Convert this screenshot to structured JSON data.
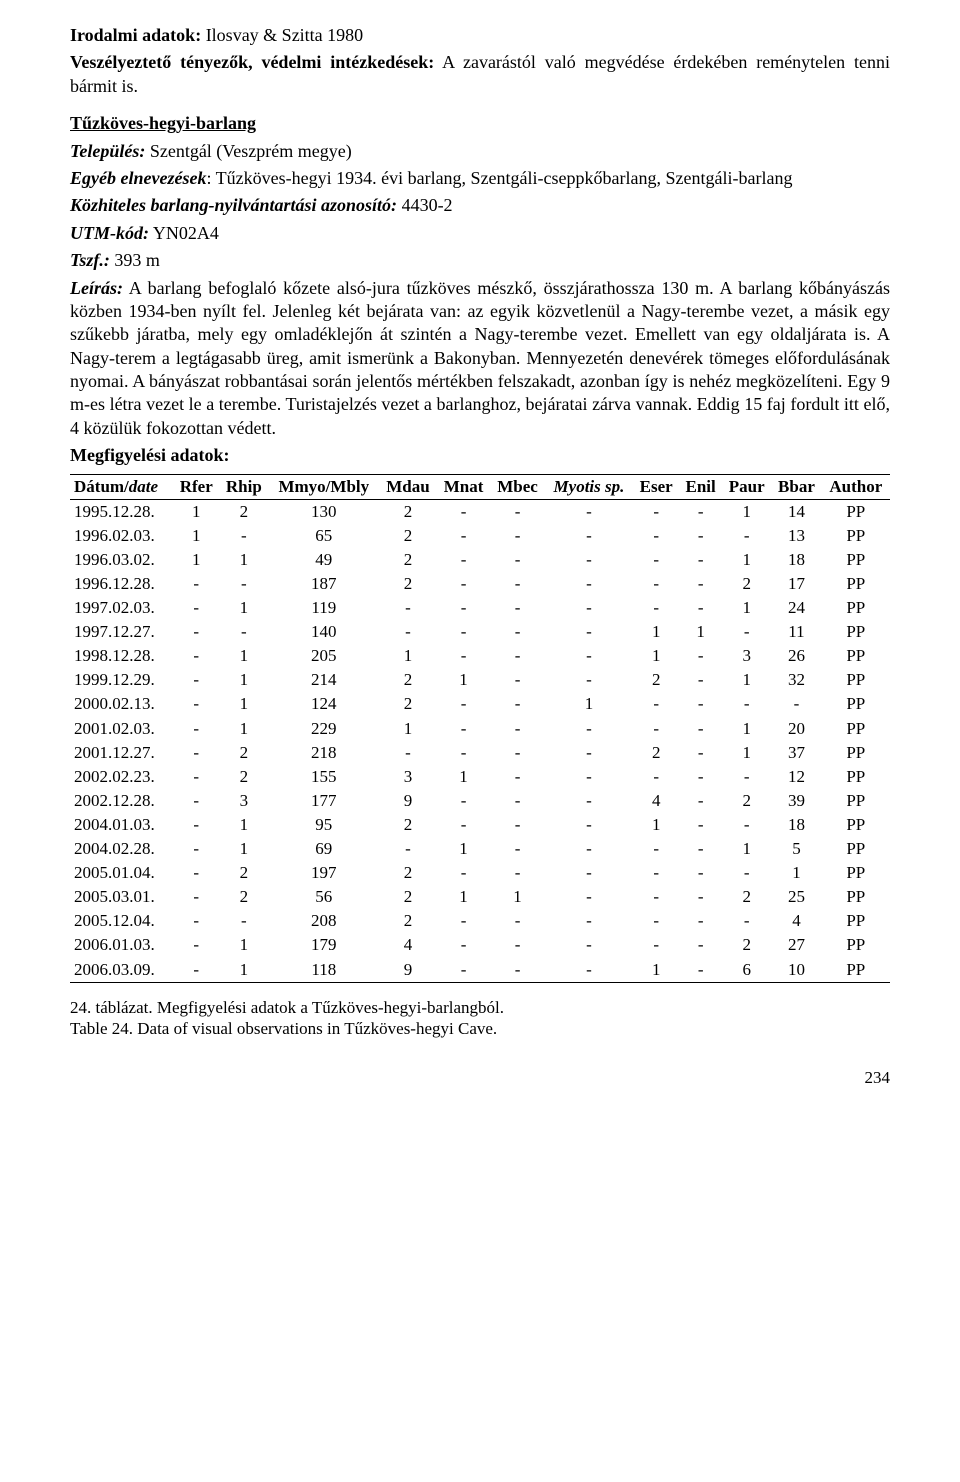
{
  "para1": {
    "label": "Irodalmi adatok:",
    "text": " Ilosvay & Szitta 1980"
  },
  "para2": {
    "label": "Veszélyeztető tényezők, védelmi intézkedések:",
    "text": " A zavarástól való megvédése érdekében reménytelen tenni bármit is."
  },
  "title": "Tűzköves-hegyi-barlang",
  "loc": {
    "label": "Település:",
    "text": " Szentgál (Veszprém megye)"
  },
  "alt": {
    "label": "Egyéb elnevezések",
    "text": ": Tűzköves-hegyi 1934. évi barlang, Szentgáli-cseppkőbarlang, Szentgáli-barlang"
  },
  "id": {
    "label": "Közhiteles barlang-nyilvántartási azonosító:",
    "text": " 4430-2"
  },
  "utm": {
    "label": "UTM-kód:",
    "text": " YN02A4"
  },
  "tszf": {
    "label": "Tszf.:",
    "text": " 393 m"
  },
  "desc_label": "Leírás:",
  "desc_text": " A barlang befoglaló kőzete alsó-jura tűzköves mészkő, összjárathossza 130 m. A barlang kőbányászás közben 1934-ben nyílt fel. Jelenleg két bejárata van: az egyik közvetlenül a Nagy-terembe vezet, a másik egy szűkebb járatba, mely egy omladéklejőn át szintén a Nagy-terembe vezet. Emellett van egy oldaljárata is. A Nagy-terem a legtágasabb üreg, amit ismerünk a Bakonyban. Mennyezetén denevérek tömeges előfordulásának nyomai. A bányászat robbantásai során jelentős mértékben felszakadt, azonban így is nehéz megközelíteni. Egy 9 m-es létra vezet le a terembe. Turistajelzés vezet a barlanghoz, bejáratai zárva vannak. Eddig 15 faj fordult itt elő, 4 közülük fokozottan védett.",
  "obs_label": "Megfigyelési adatok:",
  "headers": [
    "Dátum/",
    "date",
    "Rfer",
    "Rhip",
    "Mmyo/Mbly",
    "Mdau",
    "Mnat",
    "Mbec",
    "Myotis sp.",
    "Eser",
    "Enil",
    "Paur",
    "Bbar",
    "Author"
  ],
  "rows": [
    [
      "1995.12.28.",
      "1",
      "2",
      "130",
      "2",
      "-",
      "-",
      "-",
      "-",
      "-",
      "1",
      "14",
      "PP"
    ],
    [
      "1996.02.03.",
      "1",
      "-",
      "65",
      "2",
      "-",
      "-",
      "-",
      "-",
      "-",
      "-",
      "13",
      "PP"
    ],
    [
      "1996.03.02.",
      "1",
      "1",
      "49",
      "2",
      "-",
      "-",
      "-",
      "-",
      "-",
      "1",
      "18",
      "PP"
    ],
    [
      "1996.12.28.",
      "-",
      "-",
      "187",
      "2",
      "-",
      "-",
      "-",
      "-",
      "-",
      "2",
      "17",
      "PP"
    ],
    [
      "1997.02.03.",
      "-",
      "1",
      "119",
      "-",
      "-",
      "-",
      "-",
      "-",
      "-",
      "1",
      "24",
      "PP"
    ],
    [
      "1997.12.27.",
      "-",
      "-",
      "140",
      "-",
      "-",
      "-",
      "-",
      "1",
      "1",
      "-",
      "11",
      "PP"
    ],
    [
      "1998.12.28.",
      "-",
      "1",
      "205",
      "1",
      "-",
      "-",
      "-",
      "1",
      "-",
      "3",
      "26",
      "PP"
    ],
    [
      "1999.12.29.",
      "-",
      "1",
      "214",
      "2",
      "1",
      "-",
      "-",
      "2",
      "-",
      "1",
      "32",
      "PP"
    ],
    [
      "2000.02.13.",
      "-",
      "1",
      "124",
      "2",
      "-",
      "-",
      "1",
      "-",
      "-",
      "-",
      "-",
      "PP"
    ],
    [
      "2001.02.03.",
      "-",
      "1",
      "229",
      "1",
      "-",
      "-",
      "-",
      "-",
      "-",
      "1",
      "20",
      "PP"
    ],
    [
      "2001.12.27.",
      "-",
      "2",
      "218",
      "-",
      "-",
      "-",
      "-",
      "2",
      "-",
      "1",
      "37",
      "PP"
    ],
    [
      "2002.02.23.",
      "-",
      "2",
      "155",
      "3",
      "1",
      "-",
      "-",
      "-",
      "-",
      "-",
      "12",
      "PP"
    ],
    [
      "2002.12.28.",
      "-",
      "3",
      "177",
      "9",
      "-",
      "-",
      "-",
      "4",
      "-",
      "2",
      "39",
      "PP"
    ],
    [
      "2004.01.03.",
      "-",
      "1",
      "95",
      "2",
      "-",
      "-",
      "-",
      "1",
      "-",
      "-",
      "18",
      "PP"
    ],
    [
      "2004.02.28.",
      "-",
      "1",
      "69",
      "-",
      "1",
      "-",
      "-",
      "-",
      "-",
      "1",
      "5",
      "PP"
    ],
    [
      "2005.01.04.",
      "-",
      "2",
      "197",
      "2",
      "-",
      "-",
      "-",
      "-",
      "-",
      "-",
      "1",
      "PP"
    ],
    [
      "2005.03.01.",
      "-",
      "2",
      "56",
      "2",
      "1",
      "1",
      "-",
      "-",
      "-",
      "2",
      "25",
      "PP"
    ],
    [
      "2005.12.04.",
      "-",
      "-",
      "208",
      "2",
      "-",
      "-",
      "-",
      "-",
      "-",
      "-",
      "4",
      "PP"
    ],
    [
      "2006.01.03.",
      "-",
      "1",
      "179",
      "4",
      "-",
      "-",
      "-",
      "-",
      "-",
      "2",
      "27",
      "PP"
    ],
    [
      "2006.03.09.",
      "-",
      "1",
      "118",
      "9",
      "-",
      "-",
      "-",
      "1",
      "-",
      "6",
      "10",
      "PP"
    ]
  ],
  "caption_hu": "24. táblázat. Megfigyelési adatok a Tűzköves-hegyi-barlangból.",
  "caption_en": "Table 24. Data of visual observations in Tűzköves-hegyi Cave.",
  "page_number": "234"
}
